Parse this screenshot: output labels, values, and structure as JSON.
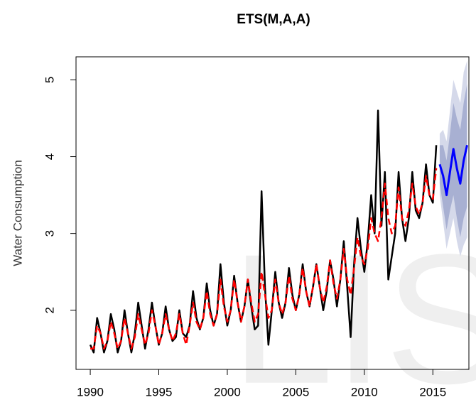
{
  "chart_data": {
    "type": "line",
    "title": "ETS(M,A,A)",
    "y_label": "Water Consumption",
    "watermark": "LIS",
    "xlim": [
      1988.96,
      2017.63
    ],
    "ylim": [
      1.23,
      5.3
    ],
    "xticks": [
      1990,
      1995,
      2000,
      2005,
      2010,
      2015
    ],
    "yticks": [
      2,
      3,
      4,
      5
    ],
    "x": [
      1990,
      1990.25,
      1990.5,
      1990.75,
      1991,
      1991.25,
      1991.5,
      1991.75,
      1992,
      1992.25,
      1992.5,
      1992.75,
      1993,
      1993.25,
      1993.5,
      1993.75,
      1994,
      1994.25,
      1994.5,
      1994.75,
      1995,
      1995.25,
      1995.5,
      1995.75,
      1996,
      1996.25,
      1996.5,
      1996.75,
      1997,
      1997.25,
      1997.5,
      1997.75,
      1998,
      1998.25,
      1998.5,
      1998.75,
      1999,
      1999.25,
      1999.5,
      1999.75,
      2000,
      2000.25,
      2000.5,
      2000.75,
      2001,
      2001.25,
      2001.5,
      2001.75,
      2002,
      2002.25,
      2002.5,
      2002.75,
      2003,
      2003.25,
      2003.5,
      2003.75,
      2004,
      2004.25,
      2004.5,
      2004.75,
      2005,
      2005.25,
      2005.5,
      2005.75,
      2006,
      2006.25,
      2006.5,
      2006.75,
      2007,
      2007.25,
      2007.5,
      2007.75,
      2008,
      2008.25,
      2008.5,
      2008.75,
      2009,
      2009.25,
      2009.5,
      2009.75,
      2010,
      2010.25,
      2010.5,
      2010.75,
      2011,
      2011.25,
      2011.5,
      2011.75,
      2012,
      2012.25,
      2012.5,
      2012.75,
      2013,
      2013.25,
      2013.5,
      2013.75,
      2014,
      2014.25,
      2014.5,
      2014.75,
      2015,
      2015.25
    ],
    "bands": [
      {
        "color": "#d5d9ea",
        "x": [
          2015.5,
          2015.75,
          2016,
          2016.25,
          2016.5,
          2016.75,
          2017,
          2017.25,
          2017.5
        ],
        "lower": [
          3.5,
          3.15,
          2.8,
          3.0,
          3.2,
          2.9,
          2.7,
          2.85,
          2.95
        ],
        "upper": [
          4.3,
          4.35,
          4.2,
          4.6,
          5.0,
          4.85,
          4.7,
          5.1,
          5.25
        ]
      },
      {
        "color": "#a8b0d2",
        "x": [
          2015.5,
          2015.75,
          2016,
          2016.25,
          2016.5,
          2016.75,
          2017,
          2017.25,
          2017.5
        ],
        "lower": [
          3.65,
          3.35,
          3.05,
          3.3,
          3.5,
          3.2,
          2.95,
          3.2,
          3.35
        ],
        "upper": [
          4.15,
          4.15,
          3.95,
          4.3,
          4.7,
          4.5,
          4.35,
          4.7,
          4.95
        ]
      }
    ],
    "series": [
      {
        "color": "#000000",
        "dash": false,
        "width": 2.5,
        "values": [
          1.55,
          1.45,
          1.9,
          1.7,
          1.45,
          1.6,
          1.95,
          1.75,
          1.45,
          1.6,
          2.0,
          1.7,
          1.45,
          1.7,
          2.1,
          1.8,
          1.5,
          1.75,
          2.1,
          1.8,
          1.55,
          1.7,
          2.05,
          1.75,
          1.6,
          1.65,
          2.0,
          1.7,
          1.65,
          1.8,
          2.25,
          1.9,
          1.75,
          1.9,
          2.35,
          2.0,
          1.8,
          1.95,
          2.6,
          2.1,
          1.8,
          2.0,
          2.45,
          2.1,
          1.85,
          2.05,
          2.4,
          2.05,
          1.75,
          1.8,
          3.55,
          2.3,
          1.55,
          2.0,
          2.5,
          2.1,
          1.9,
          2.1,
          2.55,
          2.2,
          2.0,
          2.2,
          2.6,
          2.25,
          2.05,
          2.3,
          2.6,
          2.3,
          2.0,
          2.25,
          2.65,
          2.4,
          2.05,
          2.4,
          2.9,
          2.3,
          1.65,
          2.6,
          3.2,
          2.8,
          2.5,
          2.9,
          3.5,
          3.0,
          4.6,
          3.1,
          3.8,
          2.4,
          2.7,
          3.0,
          3.8,
          3.2,
          2.9,
          3.2,
          3.8,
          3.3,
          3.2,
          3.4,
          3.9,
          3.5,
          3.4,
          4.15
        ]
      },
      {
        "color": "#ff0000",
        "dash": true,
        "width": 2.5,
        "values": [
          1.5,
          1.5,
          1.8,
          1.7,
          1.5,
          1.6,
          1.85,
          1.7,
          1.5,
          1.6,
          1.9,
          1.7,
          1.5,
          1.65,
          1.95,
          1.75,
          1.55,
          1.7,
          2.0,
          1.8,
          1.55,
          1.7,
          1.95,
          1.75,
          1.6,
          1.7,
          1.95,
          1.7,
          1.55,
          1.8,
          2.1,
          1.85,
          1.75,
          1.9,
          2.25,
          1.95,
          1.8,
          1.95,
          2.4,
          2.05,
          1.85,
          2.0,
          2.4,
          2.1,
          1.85,
          2.05,
          2.4,
          2.1,
          1.85,
          1.95,
          2.5,
          2.2,
          1.9,
          2.0,
          2.4,
          2.1,
          1.95,
          2.1,
          2.45,
          2.15,
          2.0,
          2.2,
          2.55,
          2.25,
          2.05,
          2.3,
          2.6,
          2.3,
          2.1,
          2.3,
          2.65,
          2.35,
          2.15,
          2.4,
          2.8,
          2.4,
          2.2,
          2.55,
          2.95,
          2.7,
          2.6,
          2.8,
          3.2,
          3.0,
          2.9,
          3.2,
          3.65,
          3.2,
          3.0,
          3.1,
          3.6,
          3.2,
          3.1,
          3.3,
          3.65,
          3.35,
          3.25,
          3.4,
          3.75,
          3.5,
          3.45,
          3.85
        ]
      },
      {
        "color": "#0000ff",
        "dash": false,
        "width": 3,
        "x": [
          2015.5,
          2015.75,
          2016,
          2016.25,
          2016.5,
          2016.75,
          2017,
          2017.25,
          2017.5
        ],
        "values": [
          3.9,
          3.75,
          3.5,
          3.8,
          4.1,
          3.85,
          3.65,
          3.95,
          4.15
        ]
      }
    ]
  }
}
